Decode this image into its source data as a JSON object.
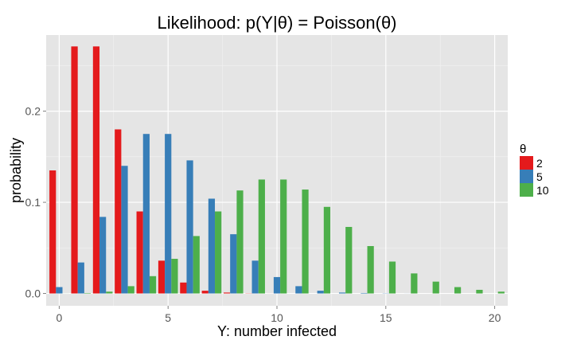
{
  "chart_data": {
    "type": "bar",
    "title": "Likelihood: p(Y|θ) = Poisson(θ)",
    "xlabel": "Y: number infected",
    "ylabel": "probability",
    "x": [
      0,
      1,
      2,
      3,
      4,
      5,
      6,
      7,
      8,
      9,
      10,
      11,
      12,
      13,
      14,
      15,
      16,
      17,
      18,
      19,
      20
    ],
    "xlim": [
      -0.6,
      20.6
    ],
    "ylim": [
      -0.0135,
      0.2835
    ],
    "x_ticks": [
      0,
      5,
      10,
      15,
      20
    ],
    "x_tick_labels": [
      "0",
      "5",
      "10",
      "15",
      "20"
    ],
    "y_ticks": [
      0.0,
      0.1,
      0.2
    ],
    "y_tick_labels": [
      "0.0",
      "0.1",
      "0.2"
    ],
    "grid": true,
    "legend": {
      "title": "θ",
      "placement": "right"
    },
    "series": [
      {
        "name": "2",
        "color": "#E41A1C",
        "values": [
          0.135,
          0.271,
          0.271,
          0.18,
          0.09,
          0.036,
          0.012,
          0.003,
          0.001,
          0.0002,
          4e-05,
          7e-06,
          1e-06,
          0,
          0,
          0,
          0,
          0,
          0,
          0,
          0
        ]
      },
      {
        "name": "5",
        "color": "#377EB8",
        "values": [
          0.007,
          0.034,
          0.084,
          0.14,
          0.175,
          0.175,
          0.146,
          0.104,
          0.065,
          0.036,
          0.018,
          0.008,
          0.003,
          0.001,
          0.0005,
          0.0002,
          5e-05,
          1e-05,
          0,
          0,
          0
        ]
      },
      {
        "name": "10",
        "color": "#4DAF4A",
        "values": [
          5e-05,
          0.0005,
          0.002,
          0.008,
          0.019,
          0.038,
          0.063,
          0.09,
          0.113,
          0.125,
          0.125,
          0.114,
          0.095,
          0.073,
          0.052,
          0.035,
          0.022,
          0.013,
          0.007,
          0.004,
          0.002
        ]
      }
    ]
  }
}
